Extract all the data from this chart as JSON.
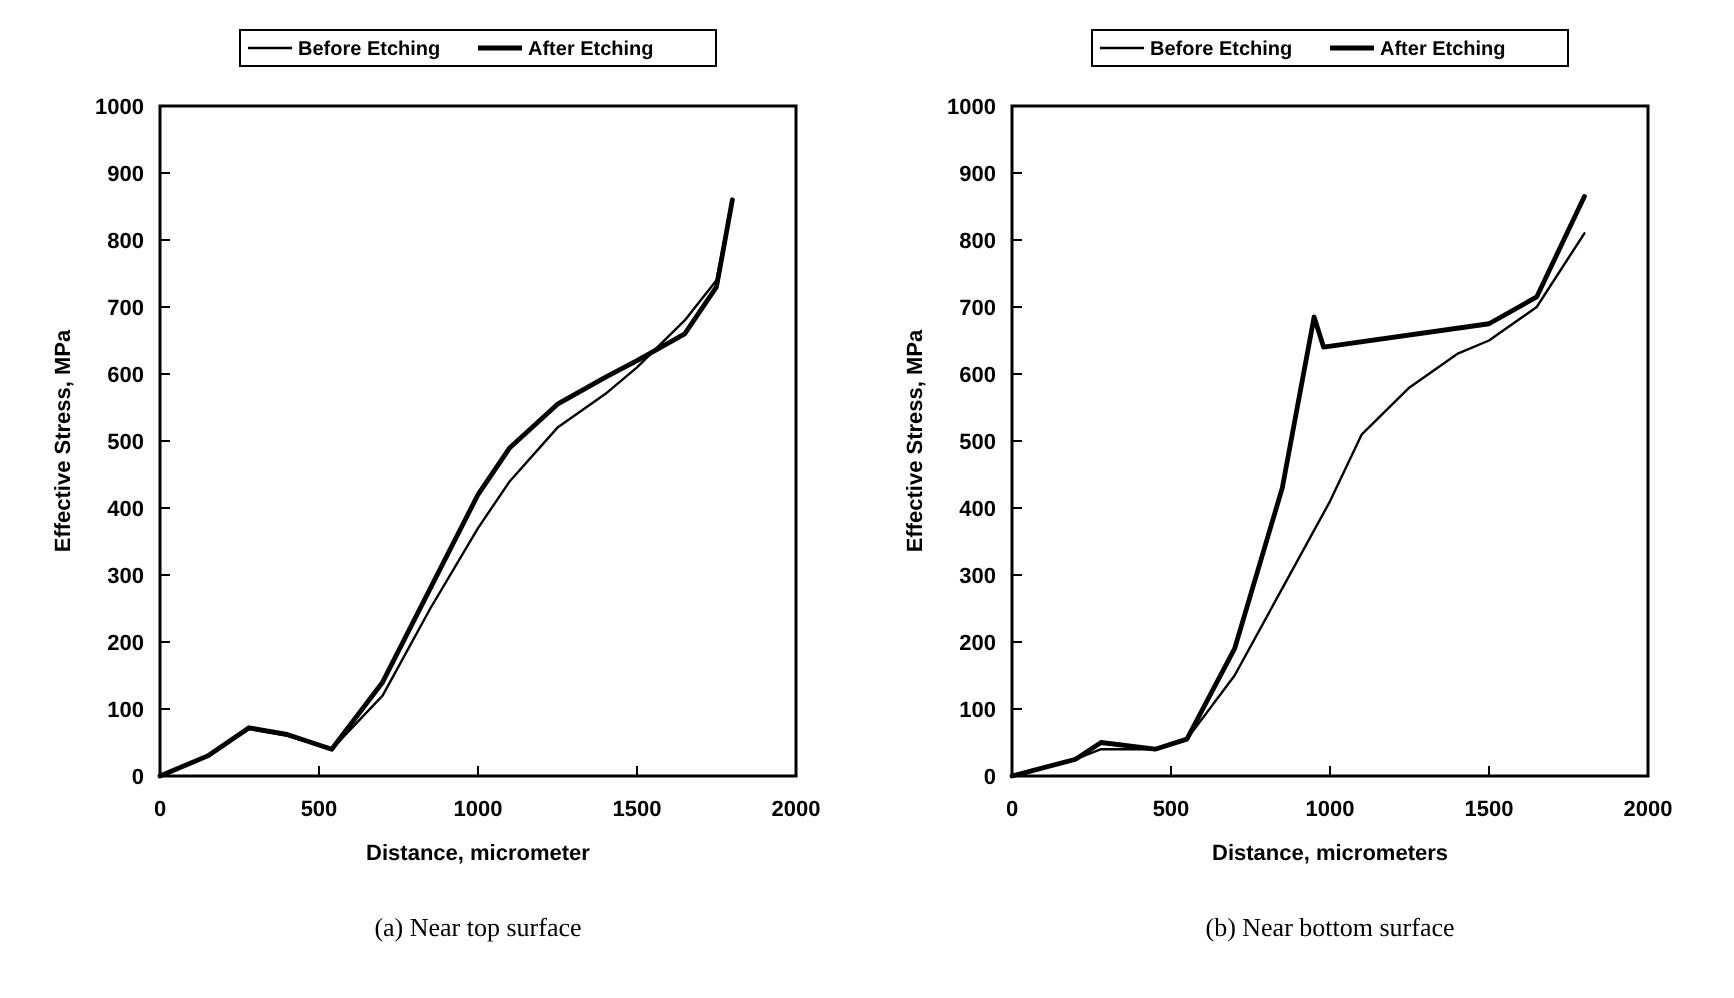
{
  "chart_data": [
    {
      "type": "line",
      "xlabel": "Distance, micrometer",
      "ylabel": "Effective Stress, MPa",
      "xlim": [
        0,
        2000
      ],
      "ylim": [
        0,
        1000
      ],
      "xticks": [
        0,
        500,
        1000,
        1500,
        2000
      ],
      "yticks": [
        0,
        100,
        200,
        300,
        400,
        500,
        600,
        700,
        800,
        900,
        1000
      ],
      "legend": "top",
      "grid": false,
      "marker": "none",
      "line_style": "solid",
      "annotations": [
        "(a) Near top surface"
      ],
      "series": [
        {
          "name": "Before Etching",
          "color": "#000000",
          "x": [
            0,
            150,
            280,
            400,
            540,
            700,
            850,
            1000,
            1100,
            1250,
            1400,
            1500,
            1650,
            1750,
            1800
          ],
          "values": [
            0,
            30,
            70,
            60,
            40,
            120,
            250,
            370,
            440,
            520,
            570,
            610,
            680,
            740,
            860
          ]
        },
        {
          "name": "After Etching",
          "color": "#000000",
          "x": [
            0,
            150,
            280,
            400,
            540,
            700,
            850,
            1000,
            1100,
            1250,
            1400,
            1500,
            1650,
            1750,
            1800
          ],
          "values": [
            0,
            30,
            72,
            62,
            40,
            140,
            280,
            420,
            490,
            555,
            595,
            620,
            660,
            730,
            860
          ]
        }
      ]
    },
    {
      "type": "line",
      "xlabel": "Distance, micrometers",
      "ylabel": "Effective Stress, MPa",
      "xlim": [
        0,
        2000
      ],
      "ylim": [
        0,
        1000
      ],
      "xticks": [
        0,
        500,
        1000,
        1500,
        2000
      ],
      "yticks": [
        0,
        100,
        200,
        300,
        400,
        500,
        600,
        700,
        800,
        900,
        1000
      ],
      "legend": "top",
      "grid": false,
      "marker": "none",
      "line_style": "solid",
      "annotations": [
        "(b) Near bottom surface"
      ],
      "series": [
        {
          "name": "Before Etching",
          "color": "#000000",
          "x": [
            0,
            200,
            280,
            450,
            550,
            700,
            850,
            1000,
            1100,
            1250,
            1400,
            1500,
            1650,
            1800
          ],
          "values": [
            0,
            25,
            40,
            40,
            55,
            150,
            280,
            410,
            510,
            580,
            630,
            650,
            700,
            810
          ]
        },
        {
          "name": "After Etching",
          "color": "#000000",
          "x": [
            0,
            200,
            280,
            450,
            550,
            700,
            850,
            950,
            980,
            1500,
            1650,
            1800
          ],
          "values": [
            0,
            25,
            50,
            40,
            55,
            190,
            430,
            685,
            640,
            675,
            715,
            865
          ]
        }
      ]
    }
  ]
}
